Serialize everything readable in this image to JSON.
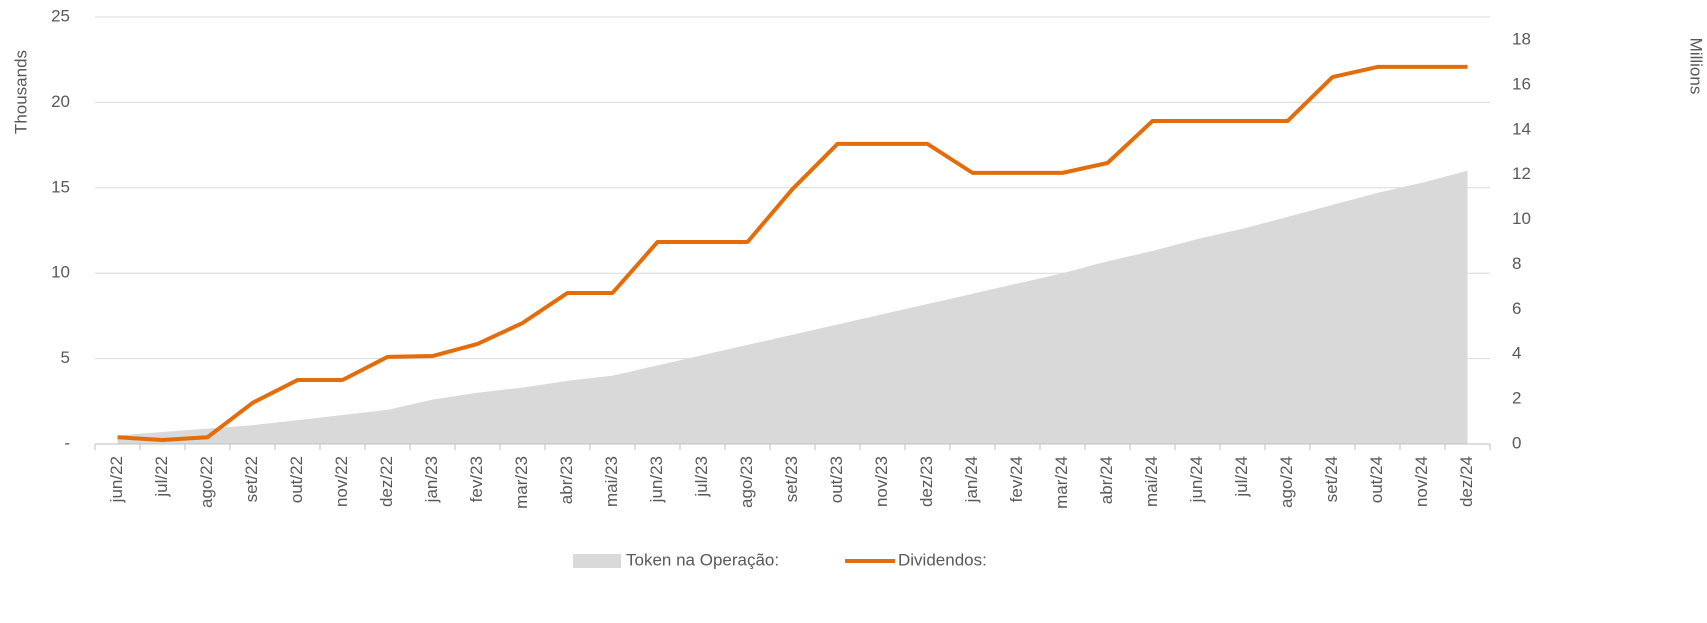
{
  "chart_data": {
    "type": "area-line",
    "ylabel": "Thousands",
    "y2label": "Millions",
    "categories": [
      "jun/22",
      "jul/22",
      "ago/22",
      "set/22",
      "out/22",
      "nov/22",
      "dez/22",
      "jan/23",
      "fev/23",
      "mar/23",
      "abr/23",
      "mai/23",
      "jun/23",
      "jul/23",
      "ago/23",
      "set/23",
      "out/23",
      "nov/23",
      "dez/23",
      "jan/24",
      "fev/24",
      "mar/24",
      "abr/24",
      "mai/24",
      "jun/24",
      "jul/24",
      "ago/24",
      "set/24",
      "out/24",
      "nov/24",
      "dez/24"
    ],
    "series": [
      {
        "name": "Token na Operação:",
        "type": "area",
        "color": "#d9d9d9",
        "axis": "y",
        "values": [
          0.5,
          0.7,
          0.9,
          1.1,
          1.4,
          1.7,
          2.0,
          2.6,
          3.0,
          3.3,
          3.7,
          4.0,
          4.6,
          5.2,
          5.8,
          6.4,
          7.0,
          7.6,
          8.2,
          8.8,
          9.4,
          10.0,
          10.7,
          11.3,
          12.0,
          12.6,
          13.3,
          14.0,
          14.7,
          15.3,
          16.0
        ]
      },
      {
        "name": "Dividendos:",
        "type": "line",
        "color": "#e46c0a",
        "axis": "y2",
        "values": [
          0.3,
          0.18,
          0.3,
          1.83,
          2.85,
          2.85,
          3.88,
          3.92,
          4.46,
          5.39,
          6.73,
          6.73,
          9.0,
          9.0,
          9.0,
          11.36,
          13.37,
          13.37,
          13.37,
          12.08,
          12.08,
          12.08,
          12.52,
          14.39,
          14.39,
          14.39,
          14.39,
          16.35,
          16.8,
          16.8,
          16.8
        ]
      }
    ],
    "ylim": [
      0,
      25
    ],
    "yticks": [
      {
        "value": 0,
        "label": "-"
      },
      5,
      10,
      15,
      20,
      25
    ],
    "y2lim": [
      0,
      18
    ],
    "y2ticks": [
      0,
      2,
      4,
      6,
      8,
      10,
      12,
      14,
      16,
      18
    ],
    "grid": true,
    "legend": "bottom"
  }
}
